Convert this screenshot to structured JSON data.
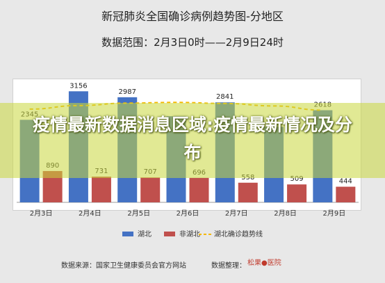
{
  "chart_data": {
    "type": "bar",
    "title": "新冠肺炎全国确诊病例趋势图-分地区",
    "subtitle": "数据范围：2月3日0时——2月9日24时",
    "categories": [
      "2月3日",
      "2月4日",
      "2月5日",
      "2月6日",
      "2月7日",
      "2月8日",
      "2月9日"
    ],
    "series": [
      {
        "name": "湖北",
        "kind": "bar",
        "color": "#4472c4",
        "values": [
          2345,
          3156,
          2987,
          2447,
          2841,
          2147,
          2618
        ]
      },
      {
        "name": "非湖北",
        "kind": "bar",
        "color": "#c0504d",
        "values": [
          890,
          731,
          707,
          696,
          558,
          509,
          444
        ]
      },
      {
        "name": "湖北确诊趋势线",
        "kind": "line",
        "color": "#f5b800",
        "style": "dashed",
        "values": [
          2650,
          2750,
          2820,
          2840,
          2810,
          2740,
          2620
        ]
      }
    ],
    "data_labels": {
      "湖北": [
        "2345",
        "3156",
        "2987",
        "",
        "2841",
        "",
        "2618"
      ],
      "非湖北": [
        "890",
        "731",
        "707",
        "696",
        "558",
        "509",
        "444"
      ]
    },
    "ylim": [
      0,
      3300
    ],
    "grid": false,
    "legend_position": "bottom"
  },
  "legend": {
    "hubei": "湖北",
    "non_hubei": "非湖北",
    "trend": "湖北确诊趋势线"
  },
  "overlay": {
    "banner_text": "疫情最新数据消息区域:疫情最新情况及分布",
    "banner_color": "#c8d73c"
  },
  "footer": {
    "source": "数据来源：国家卫生健康委员会官方网站",
    "editor": "数据整理：",
    "logo_text": "松果",
    "logo_suffix": "医院"
  }
}
